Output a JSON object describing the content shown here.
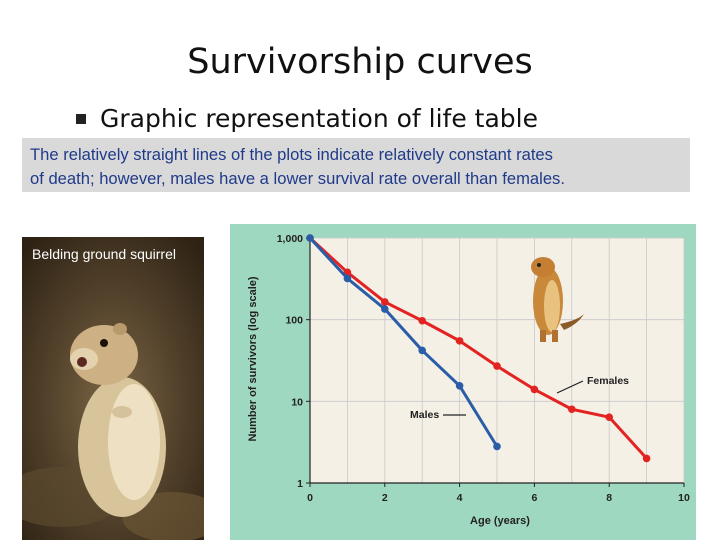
{
  "slide": {
    "title": "Survivorship curves",
    "bullet": "Graphic representation of life table",
    "caption_line1": "The relatively straight lines of the plots indicate relatively constant rates",
    "caption_line2": "of death; however, males have a lower survival rate overall than females.",
    "photo_label": "Belding ground squirrel"
  },
  "colors": {
    "panel_bg": "#9fd8c0",
    "plot_bg": "#f5f0e6",
    "females": "#e32322",
    "males": "#2a5da8",
    "caption_bg": "#d9d9d9",
    "caption_text": "#1f3a8a"
  },
  "chart_data": {
    "type": "line",
    "xlabel": "Age (years)",
    "ylabel": "Number of survivors (log scale)",
    "xlim": [
      0,
      10
    ],
    "ylim": [
      1,
      1000
    ],
    "yscale": "log",
    "x_ticks": [
      "0",
      "2",
      "4",
      "6",
      "8",
      "10"
    ],
    "y_ticks": [
      "1,000",
      "100",
      "10",
      "1"
    ],
    "grid": true,
    "series": [
      {
        "name": "Females",
        "x": [
          0,
          1,
          2,
          3,
          4,
          5,
          6,
          7,
          8,
          9
        ],
        "y": [
          1000,
          380,
          165,
          97,
          55,
          27,
          14,
          8,
          6.4,
          2
        ]
      },
      {
        "name": "Males",
        "x": [
          0,
          1,
          2,
          3,
          4,
          5
        ],
        "y": [
          1000,
          320,
          135,
          42,
          15.5,
          2.8
        ]
      }
    ]
  }
}
